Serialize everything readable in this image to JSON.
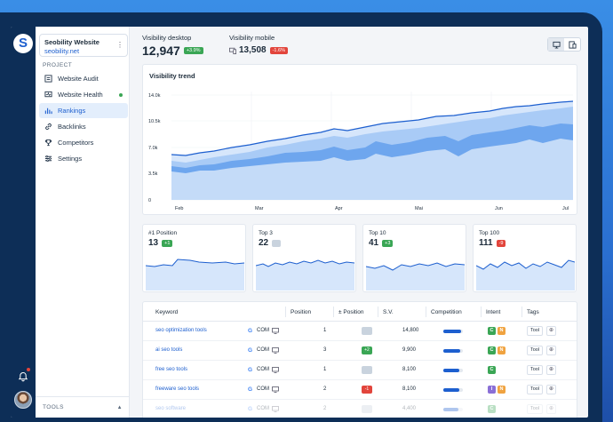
{
  "colors": {
    "accent": "#1d5fcf",
    "positive": "#3aa655",
    "negative": "#e2453c",
    "rail": "#0d2e57"
  },
  "logo": {
    "letter": "S"
  },
  "site": {
    "name": "Seobility Website",
    "url": "seobility.net"
  },
  "sidebar": {
    "section_label": "PROJECT",
    "items": [
      {
        "label": "Website Audit",
        "icon": "audit-icon"
      },
      {
        "label": "Website Health",
        "icon": "health-icon"
      },
      {
        "label": "Rankings",
        "icon": "rankings-icon"
      },
      {
        "label": "Backlinks",
        "icon": "link-icon"
      },
      {
        "label": "Competitors",
        "icon": "trophy-icon"
      },
      {
        "label": "Settings",
        "icon": "settings-icon"
      }
    ],
    "tools_label": "TOOLS"
  },
  "header": {
    "desktop": {
      "label": "Visibility desktop",
      "value": "12,947",
      "change": "+3.9%"
    },
    "mobile": {
      "label": "Visibility mobile",
      "value": "13,508",
      "change": "-1.6%"
    }
  },
  "trend": {
    "title": "Visibility trend",
    "y_ticks": [
      "14.0k",
      "10.5k",
      "7.0k",
      "3.5k",
      "0"
    ],
    "x_ticks": [
      "Feb",
      "Mar",
      "Apr",
      "Mai",
      "Jun",
      "Jul"
    ]
  },
  "positions": [
    {
      "title": "#1 Position",
      "value": "13",
      "change": "+1",
      "change_type": "green"
    },
    {
      "title": "Top 3",
      "value": "22",
      "change": "",
      "change_type": "grey"
    },
    {
      "title": "Top 10",
      "value": "41",
      "change": "+3",
      "change_type": "green"
    },
    {
      "title": "Top 100",
      "value": "111",
      "change": "-9",
      "change_type": "red"
    }
  ],
  "table": {
    "headers": [
      "Keyword",
      "Position",
      "± Position",
      "S.V.",
      "Competition",
      "Intent",
      "Tags"
    ],
    "rows": [
      {
        "keyword": "seo optimization tools",
        "engine": "G",
        "country": "COM",
        "position": "1",
        "diff": "",
        "diff_type": "grey",
        "sv": "14,800",
        "competition": 0.9,
        "intent": [
          "C",
          "N"
        ],
        "tag": "Tool"
      },
      {
        "keyword": "ai seo tools",
        "engine": "G",
        "country": "COM",
        "position": "3",
        "diff": "+2",
        "diff_type": "green",
        "sv": "9,900",
        "competition": 0.85,
        "intent": [
          "C",
          "N"
        ],
        "tag": "Tool"
      },
      {
        "keyword": "free seo tools",
        "engine": "G",
        "country": "COM",
        "position": "1",
        "diff": "",
        "diff_type": "grey",
        "sv": "8,100",
        "competition": 0.8,
        "intent": [
          "C"
        ],
        "tag": "Tool"
      },
      {
        "keyword": "freeware seo tools",
        "engine": "G",
        "country": "COM",
        "position": "2",
        "diff": "-1",
        "diff_type": "red",
        "sv": "8,100",
        "competition": 0.8,
        "intent": [
          "I",
          "N"
        ],
        "tag": "Tool"
      },
      {
        "keyword": "seo software",
        "engine": "G",
        "country": "COM",
        "position": "2",
        "diff": "",
        "diff_type": "grey",
        "sv": "4,400",
        "competition": 0.75,
        "intent": [
          "C"
        ],
        "tag": "Tool"
      }
    ]
  }
}
